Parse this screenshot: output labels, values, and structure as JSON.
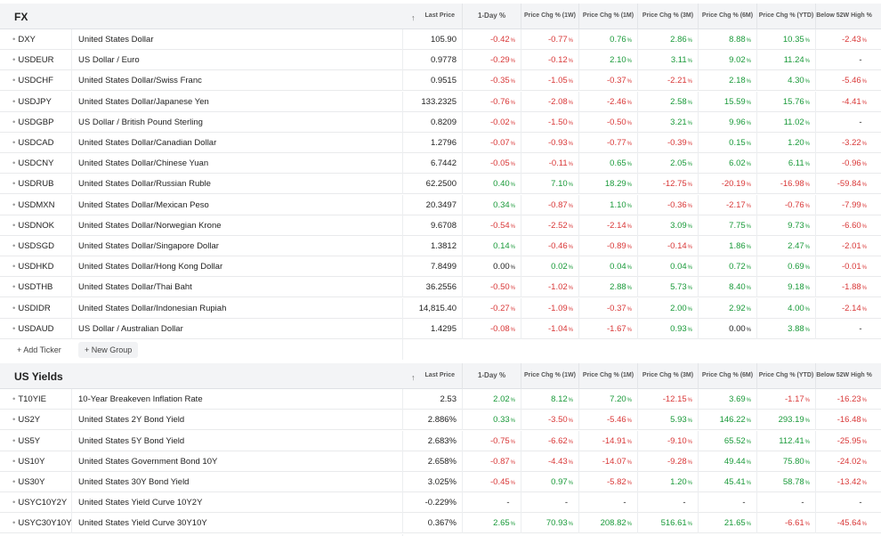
{
  "columns": [
    {
      "key": "last",
      "label": "Last Price"
    },
    {
      "key": "d1",
      "label": "1-Day %"
    },
    {
      "key": "w1",
      "label": "Price Chg % (1W)"
    },
    {
      "key": "m1",
      "label": "Price Chg % (1M)"
    },
    {
      "key": "m3",
      "label": "Price Chg % (3M)"
    },
    {
      "key": "m6",
      "label": "Price Chg % (6M)"
    },
    {
      "key": "ytd",
      "label": "Price Chg % (YTD)"
    },
    {
      "key": "h52",
      "label": "Below 52W High %"
    }
  ],
  "sort_icon": "↑",
  "actions": {
    "add_ticker": "+ Add Ticker",
    "new_group": "+ New Group"
  },
  "groups": [
    {
      "title": "FX",
      "rows": [
        {
          "ticker": "DXY",
          "name": "United States Dollar",
          "last": "105.90",
          "d1": "-0.42",
          "w1": "-0.77",
          "m1": "0.76",
          "m3": "2.86",
          "m6": "8.88",
          "ytd": "10.35",
          "h52": "-2.43"
        },
        {
          "ticker": "USDEUR",
          "name": "US Dollar / Euro",
          "last": "0.9778",
          "d1": "-0.29",
          "w1": "-0.12",
          "m1": "2.10",
          "m3": "3.11",
          "m6": "9.02",
          "ytd": "11.24",
          "h52": "-"
        },
        {
          "ticker": "USDCHF",
          "name": "United States Dollar/Swiss Franc",
          "last": "0.9515",
          "d1": "-0.35",
          "w1": "-1.05",
          "m1": "-0.37",
          "m3": "-2.21",
          "m6": "2.18",
          "ytd": "4.30",
          "h52": "-5.46"
        },
        {
          "ticker": "USDJPY",
          "name": "United States Dollar/Japanese Yen",
          "last": "133.2325",
          "d1": "-0.76",
          "w1": "-2.08",
          "m1": "-2.46",
          "m3": "2.58",
          "m6": "15.59",
          "ytd": "15.76",
          "h52": "-4.41"
        },
        {
          "ticker": "USDGBP",
          "name": "US Dollar / British Pound Sterling",
          "last": "0.8209",
          "d1": "-0.02",
          "w1": "-1.50",
          "m1": "-0.50",
          "m3": "3.21",
          "m6": "9.96",
          "ytd": "11.02",
          "h52": "-"
        },
        {
          "ticker": "USDCAD",
          "name": "United States Dollar/Canadian Dollar",
          "last": "1.2796",
          "d1": "-0.07",
          "w1": "-0.93",
          "m1": "-0.77",
          "m3": "-0.39",
          "m6": "0.15",
          "ytd": "1.20",
          "h52": "-3.22"
        },
        {
          "ticker": "USDCNY",
          "name": "United States Dollar/Chinese Yuan",
          "last": "6.7442",
          "d1": "-0.05",
          "w1": "-0.11",
          "m1": "0.65",
          "m3": "2.05",
          "m6": "6.02",
          "ytd": "6.11",
          "h52": "-0.96"
        },
        {
          "ticker": "USDRUB",
          "name": "United States Dollar/Russian Ruble",
          "last": "62.2500",
          "d1": "0.40",
          "w1": "7.10",
          "m1": "18.29",
          "m3": "-12.75",
          "m6": "-20.19",
          "ytd": "-16.98",
          "h52": "-59.84"
        },
        {
          "ticker": "USDMXN",
          "name": "United States Dollar/Mexican Peso",
          "last": "20.3497",
          "d1": "0.34",
          "w1": "-0.87",
          "m1": "1.10",
          "m3": "-0.36",
          "m6": "-2.17",
          "ytd": "-0.76",
          "h52": "-7.99"
        },
        {
          "ticker": "USDNOK",
          "name": "United States Dollar/Norwegian Krone",
          "last": "9.6708",
          "d1": "-0.54",
          "w1": "-2.52",
          "m1": "-2.14",
          "m3": "3.09",
          "m6": "7.75",
          "ytd": "9.73",
          "h52": "-6.60"
        },
        {
          "ticker": "USDSGD",
          "name": "United States Dollar/Singapore Dollar",
          "last": "1.3812",
          "d1": "0.14",
          "w1": "-0.46",
          "m1": "-0.89",
          "m3": "-0.14",
          "m6": "1.86",
          "ytd": "2.47",
          "h52": "-2.01"
        },
        {
          "ticker": "USDHKD",
          "name": "United States Dollar/Hong Kong Dollar",
          "last": "7.8499",
          "d1": "0.00",
          "w1": "0.02",
          "m1": "0.04",
          "m3": "0.04",
          "m6": "0.72",
          "ytd": "0.69",
          "h52": "-0.01"
        },
        {
          "ticker": "USDTHB",
          "name": "United States Dollar/Thai Baht",
          "last": "36.2556",
          "d1": "-0.50",
          "w1": "-1.02",
          "m1": "2.88",
          "m3": "5.73",
          "m6": "8.40",
          "ytd": "9.18",
          "h52": "-1.88"
        },
        {
          "ticker": "USDIDR",
          "name": "United States Dollar/Indonesian Rupiah",
          "last": "14,815.40",
          "d1": "-0.27",
          "w1": "-1.09",
          "m1": "-0.37",
          "m3": "2.00",
          "m6": "2.92",
          "ytd": "4.00",
          "h52": "-2.14"
        },
        {
          "ticker": "USDAUD",
          "name": "US Dollar / Australian Dollar",
          "last": "1.4295",
          "d1": "-0.08",
          "w1": "-1.04",
          "m1": "-1.67",
          "m3": "0.93",
          "m6": "0.00",
          "ytd": "3.88",
          "h52": "-"
        }
      ]
    },
    {
      "title": "US Yields",
      "rows": [
        {
          "ticker": "T10YIE",
          "name": "10-Year Breakeven Inflation Rate",
          "last": "2.53",
          "d1": "2.02",
          "w1": "8.12",
          "m1": "7.20",
          "m3": "-12.15",
          "m6": "3.69",
          "ytd": "-1.17",
          "h52": "-16.23"
        },
        {
          "ticker": "US2Y",
          "name": "United States 2Y Bond Yield",
          "last": "2.886%",
          "d1": "0.33",
          "w1": "-3.50",
          "m1": "-5.46",
          "m3": "5.93",
          "m6": "146.22",
          "ytd": "293.19",
          "h52": "-16.48"
        },
        {
          "ticker": "US5Y",
          "name": "United States 5Y Bond Yield",
          "last": "2.683%",
          "d1": "-0.75",
          "w1": "-6.62",
          "m1": "-14.91",
          "m3": "-9.10",
          "m6": "65.52",
          "ytd": "112.41",
          "h52": "-25.95"
        },
        {
          "ticker": "US10Y",
          "name": "United States Government Bond 10Y",
          "last": "2.658%",
          "d1": "-0.87",
          "w1": "-4.43",
          "m1": "-14.07",
          "m3": "-9.28",
          "m6": "49.44",
          "ytd": "75.80",
          "h52": "-24.02"
        },
        {
          "ticker": "US30Y",
          "name": "United States 30Y Bond Yield",
          "last": "3.025%",
          "d1": "-0.45",
          "w1": "0.97",
          "m1": "-5.82",
          "m3": "1.20",
          "m6": "45.41",
          "ytd": "58.78",
          "h52": "-13.42"
        },
        {
          "ticker": "USYC10Y2Y",
          "name": "United States Yield Curve 10Y2Y",
          "last": "-0.229%",
          "d1": "-",
          "w1": "-",
          "m1": "-",
          "m3": "-",
          "m6": "-",
          "ytd": "-",
          "h52": "-"
        },
        {
          "ticker": "USYC30Y10Y",
          "name": "United States Yield Curve 30Y10Y",
          "last": "0.367%",
          "d1": "2.65",
          "w1": "70.93",
          "m1": "208.82",
          "m3": "516.61",
          "m6": "21.65",
          "ytd": "-6.61",
          "h52": "-45.64"
        }
      ]
    }
  ],
  "colors": {
    "positive": "#1a9a3a",
    "negative": "#d93838",
    "header_bg": "#f3f4f6"
  }
}
